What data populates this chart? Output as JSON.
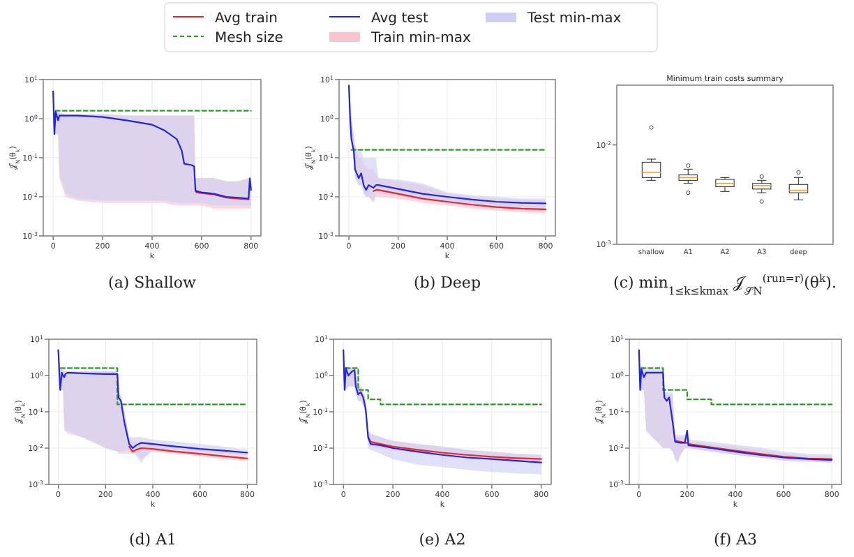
{
  "chart_data": [
    {
      "type": "line",
      "annotations": [
        "(a) Shallow"
      ],
      "xlabel": "k",
      "ylabel": "𝒥$_{N}$(θ$_{k}$)",
      "log": "y",
      "grid": true,
      "legend": "top",
      "xlim": [
        -40,
        840
      ],
      "xticks": [
        0,
        200,
        400,
        600,
        800
      ],
      "ylim": [
        0.001,
        10
      ],
      "yticks": [
        {
          "value": 10,
          "label": "10$^{1}$"
        },
        {
          "value": 1,
          "label": "10$^{0}$"
        },
        {
          "value": 0.1,
          "label": "10$^{-1}$"
        },
        {
          "value": 0.01,
          "label": "10$^{-2}$"
        },
        {
          "value": 0.001,
          "label": "10$^{-3}$"
        }
      ],
      "series": [
        {
          "name": "Avg train",
          "type": "line",
          "color": "#e8262b",
          "x": [
            0,
            5,
            10,
            20,
            25,
            50,
            100,
            200,
            300,
            400,
            450,
            500,
            520,
            530,
            560,
            570,
            575,
            580,
            600,
            650,
            700,
            750,
            790,
            795,
            800
          ],
          "values": [
            null,
            null,
            null,
            null,
            null,
            null,
            null,
            null,
            null,
            null,
            null,
            null,
            null,
            null,
            null,
            null,
            0.014,
            0.013,
            0.0125,
            0.0115,
            0.0095,
            0.009,
            0.0086,
            null,
            null
          ],
          "lower": [
            5,
            0.4,
            0.4,
            0.4,
            0.03,
            0.01,
            0.008,
            0.007,
            0.007,
            0.007,
            0.007,
            0.006,
            0.006,
            0.006,
            0.006,
            0.006,
            0.006,
            0.006,
            0.006,
            0.005,
            0.005,
            0.005,
            0.005,
            0.005,
            0.005
          ],
          "upper": [
            5,
            1.5,
            1.5,
            1.5,
            1.4,
            1.3,
            1.3,
            1.3,
            1.2,
            1.2,
            1.2,
            1.2,
            1.2,
            1.2,
            1.2,
            1.2,
            0.03,
            0.03,
            0.03,
            0.03,
            0.025,
            0.025,
            0.03,
            0.03,
            0.03
          ]
        },
        {
          "name": "Mesh size",
          "type": "line",
          "line_style": "dashed",
          "color": "#2a9a2a",
          "x": [
            10,
            800
          ],
          "values": [
            1.6,
            1.6
          ]
        },
        {
          "name": "Avg test",
          "type": "line",
          "color": "#2424d8",
          "x": [
            0,
            5,
            10,
            20,
            25,
            50,
            100,
            200,
            300,
            400,
            450,
            500,
            520,
            530,
            560,
            570,
            575,
            580,
            600,
            650,
            700,
            750,
            790,
            795,
            800
          ],
          "values": [
            5,
            0.4,
            1.5,
            0.9,
            1.2,
            1.2,
            1.2,
            1.1,
            0.9,
            0.7,
            0.5,
            0.3,
            0.15,
            0.07,
            0.065,
            0.06,
            0.015,
            0.014,
            0.013,
            0.012,
            0.01,
            0.0095,
            0.009,
            0.03,
            0.015
          ],
          "lower": [
            5,
            0.4,
            0.4,
            0.4,
            0.04,
            0.012,
            0.009,
            0.008,
            0.008,
            0.008,
            0.008,
            0.007,
            0.007,
            0.007,
            0.007,
            0.007,
            0.007,
            0.007,
            0.007,
            0.006,
            0.006,
            0.006,
            0.006,
            0.006,
            0.006
          ],
          "upper": [
            5,
            1.5,
            1.5,
            1.5,
            1.4,
            1.3,
            1.3,
            1.3,
            1.2,
            1.2,
            1.2,
            1.2,
            1.2,
            1.2,
            1.2,
            1.2,
            0.03,
            0.03,
            0.03,
            0.03,
            0.025,
            0.025,
            0.03,
            0.03,
            0.03
          ]
        },
        {
          "name": "Train min-max",
          "type": "area",
          "color": "#f7c4cf"
        },
        {
          "name": "Test min-max",
          "type": "area",
          "color": "#cfcff5"
        }
      ]
    },
    {
      "type": "line",
      "annotations": [
        "(b) Deep"
      ],
      "xlabel": "k",
      "ylabel": "𝒥$_{N}$(θ$_{k}$)",
      "log": "y",
      "grid": true,
      "xlim": [
        -40,
        840
      ],
      "xticks": [
        0,
        200,
        400,
        600,
        800
      ],
      "ylim": [
        0.001,
        10
      ],
      "yticks": [
        {
          "value": 10,
          "label": "10$^{1}$"
        },
        {
          "value": 1,
          "label": "10$^{0}$"
        },
        {
          "value": 0.1,
          "label": "10$^{-1}$"
        },
        {
          "value": 0.01,
          "label": "10$^{-2}$"
        },
        {
          "value": 0.001,
          "label": "10$^{-3}$"
        }
      ],
      "series": [
        {
          "type": "line",
          "color": "#e8262b",
          "x": [
            0,
            5,
            10,
            20,
            25,
            40,
            50,
            60,
            70,
            80,
            100,
            110,
            120,
            200,
            300,
            400,
            500,
            600,
            700,
            800
          ],
          "values": [
            null,
            null,
            null,
            null,
            null,
            null,
            null,
            null,
            null,
            null,
            0.014,
            0.015,
            0.015,
            0.012,
            0.009,
            0.0075,
            0.0063,
            0.0055,
            0.005,
            0.0048
          ],
          "lower": [
            7,
            0.5,
            0.2,
            0.08,
            0.03,
            0.02,
            0.02,
            0.012,
            0.01,
            0.01,
            0.007,
            0.01,
            0.01,
            0.009,
            0.007,
            0.006,
            0.005,
            0.0045,
            0.004,
            0.0038
          ],
          "upper": [
            8,
            3,
            1,
            0.4,
            0.2,
            0.1,
            0.1,
            0.07,
            0.06,
            0.05,
            0.05,
            0.04,
            0.03,
            0.025,
            0.02,
            0.012,
            0.01,
            0.009,
            0.0085,
            0.008
          ]
        },
        {
          "type": "line",
          "line_style": "dashed",
          "color": "#2a9a2a",
          "x": [
            10,
            800
          ],
          "values": [
            0.16,
            0.16
          ]
        },
        {
          "type": "line",
          "color": "#2424d8",
          "x": [
            0,
            5,
            10,
            20,
            25,
            40,
            50,
            60,
            70,
            80,
            100,
            110,
            120,
            200,
            300,
            400,
            500,
            600,
            700,
            800
          ],
          "values": [
            7,
            1,
            0.3,
            0.15,
            0.05,
            0.03,
            0.04,
            0.02,
            0.015,
            0.02,
            0.017,
            0.02,
            0.02,
            0.016,
            0.012,
            0.01,
            0.0085,
            0.0075,
            0.007,
            0.0068
          ],
          "lower": [
            7,
            0.5,
            0.2,
            0.08,
            0.03,
            0.02,
            0.02,
            0.012,
            0.01,
            0.01,
            0.008,
            0.012,
            0.012,
            0.011,
            0.009,
            0.007,
            0.006,
            0.0055,
            0.005,
            0.005
          ],
          "upper": [
            8,
            3,
            1,
            0.4,
            0.2,
            0.15,
            0.15,
            0.1,
            0.1,
            0.1,
            0.1,
            0.1,
            0.03,
            0.028,
            0.022,
            0.013,
            0.011,
            0.01,
            0.009,
            0.009
          ]
        },
        {
          "type": "area",
          "color": "#f7c4cf"
        },
        {
          "type": "area",
          "color": "#cfcff5"
        }
      ]
    },
    {
      "type": "box",
      "title": "Minimum train costs summary",
      "annotations": [
        "(c) min$_{1≤k≤kmax}$ 𝒥$_{𝒮N}$$^{(run=r)}$(θ$^{k}$)."
      ],
      "log": "y",
      "color": "#444444",
      "categories": [
        "shallow",
        "A1",
        "A2",
        "A3",
        "deep"
      ],
      "ylim": [
        0.001,
        0.04
      ],
      "yticks": [
        {
          "value": 0.01,
          "label": "10$^{-2}$"
        },
        {
          "value": 0.001,
          "label": "10$^{-3}$"
        }
      ],
      "boxes": [
        {
          "low": 0.0044,
          "q1": 0.0047,
          "median": 0.0053,
          "q3": 0.0067,
          "high": 0.0072,
          "outliers": [
            0.015
          ]
        },
        {
          "low": 0.0041,
          "q1": 0.0044,
          "median": 0.0047,
          "q3": 0.005,
          "high": 0.0057,
          "outliers": [
            0.0062,
            0.0033
          ]
        },
        {
          "low": 0.0034,
          "q1": 0.0038,
          "median": 0.0041,
          "q3": 0.0045,
          "high": 0.0047
        },
        {
          "low": 0.0033,
          "q1": 0.0036,
          "median": 0.0039,
          "q3": 0.0041,
          "high": 0.0044,
          "outliers": [
            0.0048,
            0.0027
          ]
        },
        {
          "low": 0.0028,
          "q1": 0.0033,
          "median": 0.0035,
          "q3": 0.004,
          "high": 0.0047,
          "outliers": [
            0.0053
          ]
        }
      ]
    },
    {
      "type": "line",
      "annotations": [
        "(d) A1"
      ],
      "xlabel": "k",
      "ylabel": "𝒥$_{N}$(θ$_{k}$)",
      "log": "y",
      "grid": true,
      "xlim": [
        -40,
        840
      ],
      "xticks": [
        0,
        200,
        400,
        600,
        800
      ],
      "ylim": [
        0.001,
        10
      ],
      "yticks": [
        {
          "value": 10,
          "label": "10$^{1}$"
        },
        {
          "value": 1,
          "label": "10$^{0}$"
        },
        {
          "value": 0.1,
          "label": "10$^{-1}$"
        },
        {
          "value": 0.01,
          "label": "10$^{-2}$"
        },
        {
          "value": 0.001,
          "label": "10$^{-3}$"
        }
      ],
      "series": [
        {
          "type": "line",
          "color": "#e8262b",
          "x": [
            0,
            8,
            15,
            20,
            25,
            30,
            40,
            100,
            200,
            250,
            255,
            265,
            280,
            300,
            315,
            330,
            350,
            400,
            500,
            600,
            700,
            800
          ],
          "values": [
            null,
            null,
            null,
            null,
            null,
            null,
            null,
            null,
            null,
            null,
            null,
            null,
            null,
            0.011,
            0.008,
            0.009,
            0.01,
            0.0095,
            0.008,
            0.007,
            0.006,
            0.0052
          ],
          "lower": [
            5,
            0.4,
            0.4,
            0.4,
            0.03,
            0.03,
            0.025,
            0.02,
            0.01,
            0.008,
            0.007,
            0.007,
            0.007,
            0.007,
            0.007,
            0.007,
            0.005,
            0.008,
            0.007,
            0.006,
            0.005,
            0.0045
          ],
          "upper": [
            5,
            1.5,
            1.5,
            1.5,
            1.3,
            1.3,
            1.3,
            1.3,
            1.3,
            1.3,
            0.3,
            0.3,
            0.1,
            0.02,
            0.015,
            0.015,
            0.015,
            0.014,
            0.011,
            0.009,
            0.008,
            0.007
          ]
        },
        {
          "type": "line",
          "line_style": "dashed",
          "color": "#2a9a2a",
          "x": [
            10,
            250,
            250,
            800
          ],
          "values": [
            1.6,
            1.6,
            0.16,
            0.16
          ]
        },
        {
          "type": "line",
          "color": "#2424d8",
          "x": [
            0,
            8,
            15,
            20,
            25,
            30,
            40,
            100,
            200,
            250,
            255,
            265,
            280,
            300,
            315,
            330,
            350,
            400,
            500,
            600,
            700,
            800
          ],
          "values": [
            5,
            0.4,
            1.2,
            1,
            0.9,
            1.1,
            1.2,
            1.15,
            1.1,
            1.1,
            0.25,
            0.2,
            0.05,
            0.013,
            0.01,
            0.012,
            0.014,
            0.013,
            0.011,
            0.0095,
            0.0085,
            0.0075
          ],
          "lower": [
            5,
            0.4,
            0.4,
            0.4,
            0.05,
            0.03,
            0.03,
            0.02,
            0.01,
            0.008,
            0.008,
            0.008,
            0.008,
            0.009,
            0.008,
            0.006,
            0.004,
            0.01,
            0.009,
            0.008,
            0.007,
            0.0065
          ],
          "upper": [
            5,
            1.5,
            1.5,
            1.5,
            1.3,
            1.3,
            1.3,
            1.3,
            1.3,
            1.3,
            0.3,
            0.3,
            0.1,
            0.02,
            0.02,
            0.02,
            0.02,
            0.017,
            0.015,
            0.013,
            0.011,
            0.009
          ]
        },
        {
          "type": "area",
          "color": "#f7c4cf"
        },
        {
          "type": "area",
          "color": "#cfcff5"
        }
      ]
    },
    {
      "type": "line",
      "annotations": [
        "(e) A2"
      ],
      "xlabel": "k",
      "ylabel": "𝒥$_{N}$(θ$_{k}$)",
      "log": "y",
      "grid": true,
      "xlim": [
        -40,
        840
      ],
      "xticks": [
        0,
        200,
        400,
        600,
        800
      ],
      "ylim": [
        0.001,
        10
      ],
      "yticks": [
        {
          "value": 10,
          "label": "10$^{1}$"
        },
        {
          "value": 1,
          "label": "10$^{0}$"
        },
        {
          "value": 0.1,
          "label": "10$^{-1}$"
        },
        {
          "value": 0.01,
          "label": "10$^{-2}$"
        },
        {
          "value": 0.001,
          "label": "10$^{-3}$"
        }
      ],
      "series": [
        {
          "type": "line",
          "color": "#e8262b",
          "x": [
            0,
            5,
            10,
            20,
            35,
            45,
            50,
            60,
            70,
            80,
            90,
            100,
            110,
            150,
            200,
            300,
            400,
            500,
            600,
            700,
            800
          ],
          "values": [
            null,
            null,
            null,
            null,
            null,
            null,
            null,
            null,
            null,
            null,
            null,
            0.02,
            0.015,
            0.013,
            0.011,
            0.009,
            0.0075,
            0.0065,
            0.0058,
            0.0053,
            0.005
          ],
          "lower": [
            5,
            0.4,
            0.4,
            0.5,
            0.5,
            0.5,
            0.3,
            0.2,
            0.2,
            0.15,
            0.08,
            0.012,
            0.011,
            0.01,
            0.009,
            0.0075,
            0.006,
            0.0055,
            0.005,
            0.0046,
            0.0043
          ],
          "upper": [
            5,
            1.8,
            1.8,
            1.6,
            1.6,
            1.6,
            1.6,
            0.5,
            0.5,
            0.4,
            0.2,
            0.03,
            0.025,
            0.02,
            0.016,
            0.013,
            0.011,
            0.009,
            0.008,
            0.007,
            0.0065
          ]
        },
        {
          "type": "line",
          "line_style": "dashed",
          "color": "#2a9a2a",
          "x": [
            10,
            60,
            60,
            100,
            100,
            150,
            150,
            800
          ],
          "values": [
            1.6,
            1.6,
            0.4,
            0.4,
            0.22,
            0.22,
            0.16,
            0.16
          ]
        },
        {
          "type": "line",
          "color": "#2424d8",
          "x": [
            0,
            5,
            10,
            20,
            35,
            45,
            50,
            60,
            70,
            80,
            90,
            100,
            110,
            150,
            200,
            300,
            400,
            500,
            600,
            700,
            800
          ],
          "values": [
            5,
            0.4,
            1.6,
            1,
            1.3,
            1.4,
            0.5,
            0.3,
            0.35,
            0.25,
            0.12,
            0.02,
            0.013,
            0.012,
            0.01,
            0.008,
            0.0065,
            0.0055,
            0.005,
            0.0045,
            0.004
          ],
          "lower": [
            5,
            0.4,
            0.4,
            0.5,
            0.5,
            0.5,
            0.3,
            0.2,
            0.2,
            0.15,
            0.08,
            0.01,
            0.009,
            0.007,
            0.005,
            0.0035,
            0.003,
            0.0025,
            0.0022,
            0.002,
            0.0019
          ],
          "upper": [
            5,
            1.8,
            1.8,
            1.6,
            1.6,
            1.6,
            1.6,
            0.5,
            0.5,
            0.4,
            0.2,
            0.03,
            0.025,
            0.02,
            0.016,
            0.013,
            0.011,
            0.009,
            0.008,
            0.007,
            0.0065
          ]
        },
        {
          "type": "area",
          "color": "#f7c4cf"
        },
        {
          "type": "area",
          "color": "#cfcff5"
        }
      ]
    },
    {
      "type": "line",
      "annotations": [
        "(f) A3"
      ],
      "xlabel": "k",
      "ylabel": "𝒥$_{N}$(θ$_{k}$)",
      "log": "y",
      "grid": true,
      "xlim": [
        -40,
        840
      ],
      "xticks": [
        0,
        200,
        400,
        600,
        800
      ],
      "ylim": [
        0.001,
        10
      ],
      "yticks": [
        {
          "value": 10,
          "label": "10$^{1}$"
        },
        {
          "value": 1,
          "label": "10$^{0}$"
        },
        {
          "value": 0.1,
          "label": "10$^{-1}$"
        },
        {
          "value": 0.01,
          "label": "10$^{-2}$"
        },
        {
          "value": 0.001,
          "label": "10$^{-3}$"
        }
      ],
      "series": [
        {
          "type": "line",
          "color": "#e8262b",
          "x": [
            0,
            5,
            10,
            20,
            30,
            100,
            105,
            115,
            125,
            140,
            150,
            160,
            170,
            190,
            200,
            205,
            300,
            400,
            500,
            600,
            700,
            800
          ],
          "values": [
            null,
            null,
            null,
            null,
            null,
            null,
            null,
            null,
            null,
            null,
            0.016,
            0.0155,
            0.015,
            0.014,
            0.014,
            0.013,
            0.0105,
            0.0085,
            0.007,
            0.0058,
            0.0052,
            0.005
          ],
          "lower": [
            5,
            0.4,
            0.4,
            0.4,
            0.03,
            0.01,
            0.01,
            0.01,
            0.01,
            0.008,
            0.005,
            0.004,
            0.006,
            0.01,
            0.01,
            0.01,
            0.008,
            0.0065,
            0.0055,
            0.0045,
            0.0042,
            0.004
          ],
          "upper": [
            5,
            1.6,
            1.6,
            1.6,
            1.3,
            1.3,
            0.3,
            0.3,
            0.3,
            0.3,
            0.02,
            0.02,
            0.02,
            0.02,
            0.03,
            0.015,
            0.013,
            0.011,
            0.009,
            0.007,
            0.0062,
            0.006
          ]
        },
        {
          "type": "line",
          "line_style": "dashed",
          "color": "#2a9a2a",
          "x": [
            10,
            100,
            100,
            200,
            200,
            300,
            300,
            800
          ],
          "values": [
            1.6,
            1.6,
            0.4,
            0.4,
            0.22,
            0.22,
            0.16,
            0.16
          ]
        },
        {
          "type": "line",
          "color": "#2424d8",
          "x": [
            0,
            5,
            10,
            20,
            30,
            100,
            105,
            115,
            125,
            140,
            150,
            160,
            170,
            190,
            200,
            205,
            300,
            400,
            500,
            600,
            700,
            800
          ],
          "values": [
            5,
            0.4,
            1.5,
            0.9,
            1.2,
            1.2,
            0.25,
            0.2,
            0.25,
            0.05,
            0.015,
            0.0145,
            0.014,
            0.014,
            0.03,
            0.012,
            0.01,
            0.008,
            0.0065,
            0.0055,
            0.005,
            0.0047
          ],
          "lower": [
            5,
            0.4,
            0.4,
            0.4,
            0.03,
            0.01,
            0.01,
            0.01,
            0.01,
            0.008,
            0.005,
            0.004,
            0.006,
            0.01,
            0.01,
            0.01,
            0.008,
            0.0065,
            0.0055,
            0.0045,
            0.0042,
            0.004
          ],
          "upper": [
            5.5,
            1.8,
            1.8,
            1.8,
            1.5,
            1.5,
            0.35,
            0.35,
            0.35,
            0.35,
            0.023,
            0.023,
            0.023,
            0.023,
            0.035,
            0.017,
            0.015,
            0.0125,
            0.0105,
            0.008,
            0.007,
            0.0068
          ]
        },
        {
          "type": "area",
          "color": "#f7c4cf"
        },
        {
          "type": "area",
          "color": "#cfcff5"
        }
      ]
    }
  ]
}
